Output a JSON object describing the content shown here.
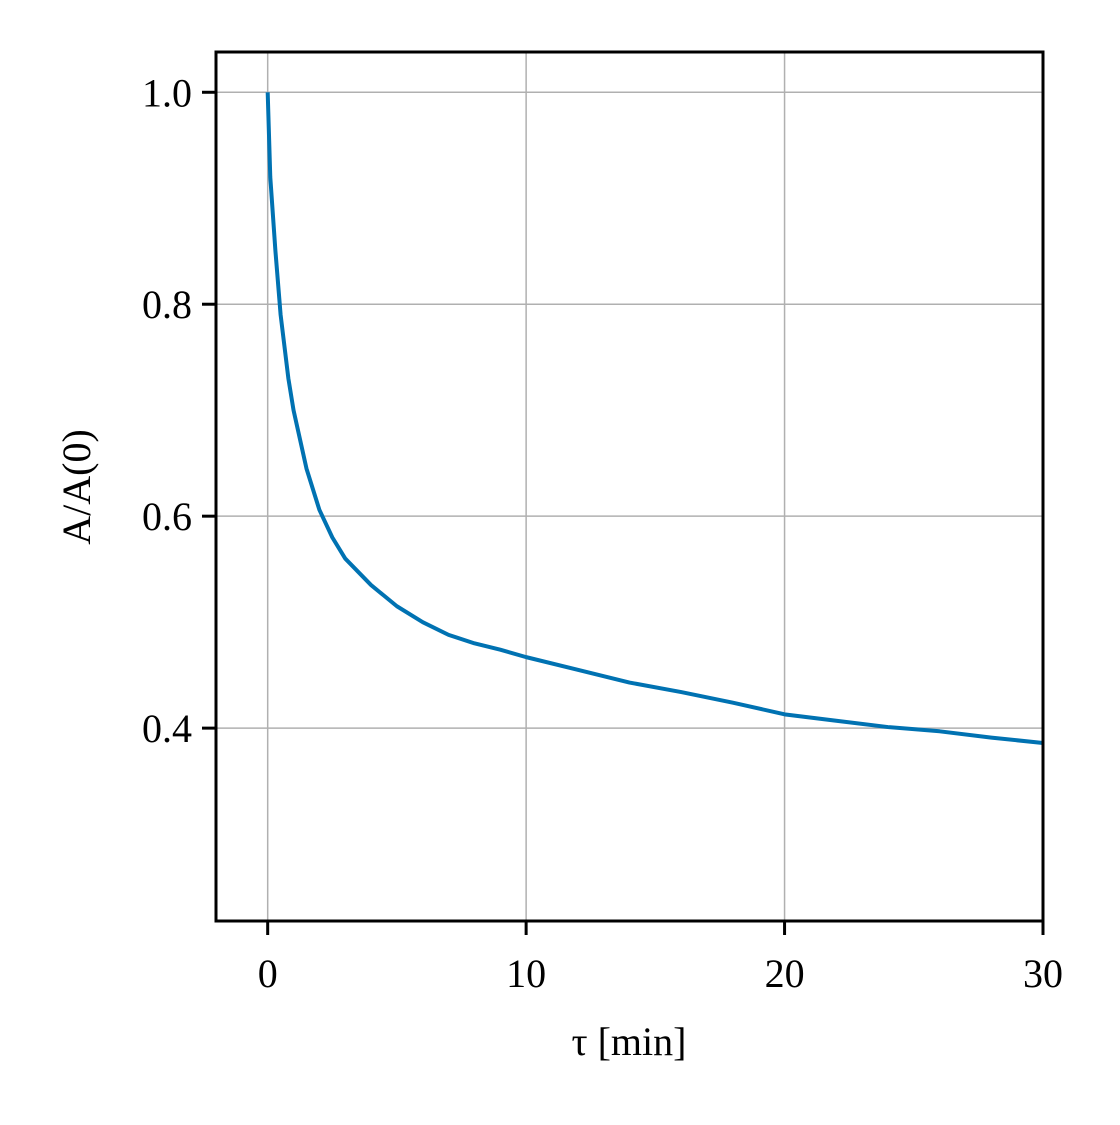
{
  "chart_data": {
    "type": "line",
    "xlabel": "τ [min]",
    "ylabel": "A/A(0)",
    "x": [
      0,
      0.1,
      0.3,
      0.5,
      0.8,
      1,
      1.5,
      2,
      2.5,
      3,
      4,
      5,
      6,
      7,
      8,
      9,
      10,
      12,
      14,
      16,
      18,
      20,
      22,
      24,
      26,
      28,
      30
    ],
    "series": [
      {
        "color": "#0072b2",
        "values": [
          1.0,
          0.92,
          0.85,
          0.79,
          0.73,
          0.7,
          0.645,
          0.606,
          0.58,
          0.56,
          0.535,
          0.515,
          0.5,
          0.488,
          0.48,
          0.474,
          0.467,
          0.455,
          0.443,
          0.434,
          0.424,
          0.413,
          0.407,
          0.401,
          0.397,
          0.391,
          0.386
        ]
      }
    ],
    "xlim": [
      -2,
      30
    ],
    "ylim": [
      0.218,
      1.038
    ],
    "xticks": [
      0,
      10,
      20,
      30
    ],
    "yticks": [
      0.4,
      0.6,
      0.8,
      {
        "value": 1,
        "label": "1.0"
      }
    ],
    "grid": true
  }
}
